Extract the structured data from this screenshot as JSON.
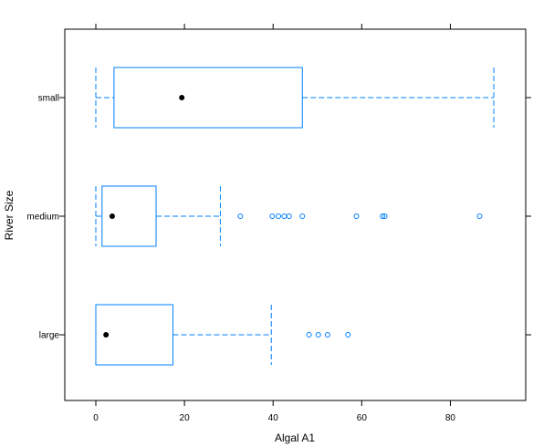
{
  "chart_data": {
    "type": "boxplot",
    "orientation": "horizontal",
    "xlabel": "Algal A1",
    "ylabel": "River Size",
    "xlim": [
      -7,
      97
    ],
    "x_ticks": [
      0,
      20,
      40,
      60,
      80
    ],
    "categories": [
      "large",
      "medium",
      "small"
    ],
    "box_color": "#0080ff",
    "median_color": "#000000",
    "grid": false,
    "boxes": [
      {
        "category": "large",
        "whisker_low": 0,
        "q1": 0,
        "median": 2.3,
        "q3": 17.4,
        "whisker_high": 39.6,
        "outliers": [
          48.1,
          50.2,
          52.3,
          56.9
        ]
      },
      {
        "category": "medium",
        "whisker_low": 0,
        "q1": 1.4,
        "median": 3.7,
        "q3": 13.6,
        "whisker_high": 28.1,
        "outliers": [
          32.6,
          39.8,
          41.2,
          42.5,
          43.6,
          46.6,
          58.8,
          64.7,
          65.2,
          86.6
        ]
      },
      {
        "category": "small",
        "whisker_low": 0,
        "q1": 4.1,
        "median": 19.4,
        "q3": 46.6,
        "whisker_high": 89.8,
        "outliers": []
      }
    ]
  }
}
